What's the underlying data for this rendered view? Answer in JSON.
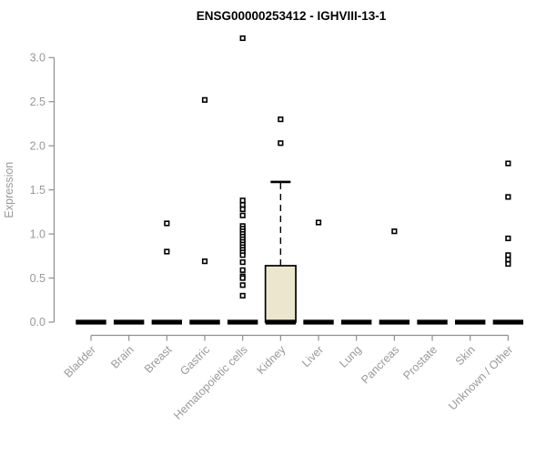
{
  "colors": {
    "title": "#000000",
    "axis": "#8f8f8f",
    "tick_label": "#999999",
    "box_fill": "#ebe7cf",
    "box_stroke": "#000000"
  },
  "chart_data": {
    "type": "boxplot",
    "title": "ENSG00000253412 - IGHVIII-13-1",
    "xlabel": "",
    "ylabel": "Expression",
    "ylim": [
      0,
      3.3
    ],
    "yticks": [
      0.0,
      0.5,
      1.0,
      1.5,
      2.0,
      2.5,
      3.0
    ],
    "grid": false,
    "legend": false,
    "categories": [
      "Bladder",
      "Brain",
      "Breast",
      "Gastric",
      "Hematopoietic cells",
      "Kidney",
      "Liver",
      "Lung",
      "Pancreas",
      "Prostate",
      "Skin",
      "Unknown / Other"
    ],
    "boxes": [
      {
        "category": "Bladder",
        "q1": 0,
        "median": 0,
        "q3": 0,
        "whisker_low": 0,
        "whisker_high": 0,
        "outliers": []
      },
      {
        "category": "Brain",
        "q1": 0,
        "median": 0,
        "q3": 0,
        "whisker_low": 0,
        "whisker_high": 0,
        "outliers": []
      },
      {
        "category": "Breast",
        "q1": 0,
        "median": 0,
        "q3": 0,
        "whisker_low": 0,
        "whisker_high": 0,
        "outliers": [
          1.12,
          0.8
        ]
      },
      {
        "category": "Gastric",
        "q1": 0,
        "median": 0,
        "q3": 0,
        "whisker_low": 0,
        "whisker_high": 0,
        "outliers": [
          2.52,
          0.69
        ]
      },
      {
        "category": "Hematopoietic cells",
        "q1": 0,
        "median": 0,
        "q3": 0,
        "whisker_low": 0,
        "whisker_high": 0,
        "outliers": [
          3.22,
          1.38,
          1.33,
          1.28,
          1.21,
          1.09,
          1.06,
          1.03,
          1.0,
          0.97,
          0.94,
          0.91,
          0.88,
          0.85,
          0.82,
          0.79,
          0.76,
          0.68,
          0.59,
          0.52,
          0.5,
          0.42,
          0.3
        ]
      },
      {
        "category": "Kidney",
        "q1": 0,
        "median": 0,
        "q3": 0.64,
        "whisker_low": 0,
        "whisker_high": 1.59,
        "outliers": [
          2.3,
          2.03
        ]
      },
      {
        "category": "Liver",
        "q1": 0,
        "median": 0,
        "q3": 0,
        "whisker_low": 0,
        "whisker_high": 0,
        "outliers": [
          1.13
        ]
      },
      {
        "category": "Lung",
        "q1": 0,
        "median": 0,
        "q3": 0,
        "whisker_low": 0,
        "whisker_high": 0,
        "outliers": []
      },
      {
        "category": "Pancreas",
        "q1": 0,
        "median": 0,
        "q3": 0,
        "whisker_low": 0,
        "whisker_high": 0,
        "outliers": [
          1.03
        ]
      },
      {
        "category": "Prostate",
        "q1": 0,
        "median": 0,
        "q3": 0,
        "whisker_low": 0,
        "whisker_high": 0,
        "outliers": []
      },
      {
        "category": "Skin",
        "q1": 0,
        "median": 0,
        "q3": 0,
        "whisker_low": 0,
        "whisker_high": 0,
        "outliers": []
      },
      {
        "category": "Unknown / Other",
        "q1": 0,
        "median": 0,
        "q3": 0,
        "whisker_low": 0,
        "whisker_high": 0,
        "outliers": [
          1.8,
          1.42,
          0.95,
          0.76,
          0.71,
          0.66
        ]
      }
    ]
  }
}
